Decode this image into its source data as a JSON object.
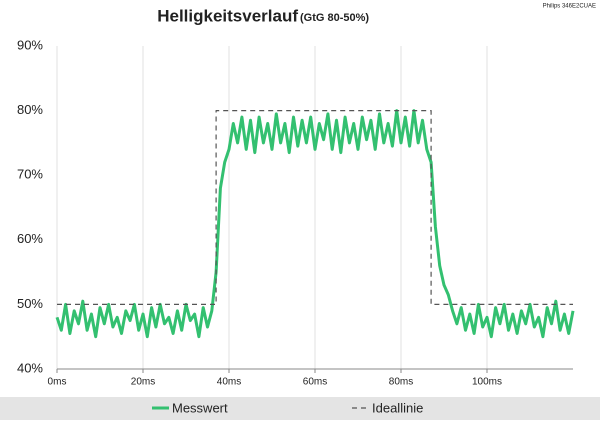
{
  "chart_data": {
    "type": "line",
    "title": "Helligkeitsverlauf",
    "subtitle": "(GtG 80-50%)",
    "source": "Philips 346E2CUAE",
    "xlim": [
      0,
      120
    ],
    "ylim": [
      40,
      90
    ],
    "xticks": [
      {
        "value": 0,
        "label": "0ms"
      },
      {
        "value": 20,
        "label": "20ms"
      },
      {
        "value": 40,
        "label": "40ms"
      },
      {
        "value": 60,
        "label": "60ms"
      },
      {
        "value": 80,
        "label": "80ms"
      },
      {
        "value": 100,
        "label": "100ms"
      }
    ],
    "yticks": [
      {
        "value": 40,
        "label": "40%"
      },
      {
        "value": 50,
        "label": "50%"
      },
      {
        "value": 60,
        "label": "60%"
      },
      {
        "value": 70,
        "label": "70%"
      },
      {
        "value": 80,
        "label": "80%"
      },
      {
        "value": 90,
        "label": "90%"
      }
    ],
    "grid": true,
    "legend": "bottom",
    "series": [
      {
        "name": "Messwert",
        "color": "#33c070",
        "dashed": false,
        "x": [
          0,
          1,
          2,
          3,
          4,
          5,
          6,
          7,
          8,
          9,
          10,
          11,
          12,
          13,
          14,
          15,
          16,
          17,
          18,
          19,
          20,
          21,
          22,
          23,
          24,
          25,
          26,
          27,
          28,
          29,
          30,
          31,
          32,
          33,
          34,
          35,
          36,
          37,
          38,
          39,
          40,
          41,
          42,
          43,
          44,
          45,
          46,
          47,
          48,
          49,
          50,
          51,
          52,
          53,
          54,
          55,
          56,
          57,
          58,
          59,
          60,
          61,
          62,
          63,
          64,
          65,
          66,
          67,
          68,
          69,
          70,
          71,
          72,
          73,
          74,
          75,
          76,
          77,
          78,
          79,
          80,
          81,
          82,
          83,
          84,
          85,
          86,
          87,
          88,
          89,
          90,
          91,
          92,
          93,
          94,
          95,
          96,
          97,
          98,
          99,
          100,
          101,
          102,
          103,
          104,
          105,
          106,
          107,
          108,
          109,
          110,
          111,
          112,
          113,
          114,
          115,
          116,
          117,
          118,
          119,
          120
        ],
        "values": [
          48,
          46,
          50,
          45.5,
          49,
          47,
          50.5,
          46,
          48.5,
          45,
          49.5,
          47,
          50,
          46.5,
          48,
          45.5,
          49,
          47.5,
          50,
          46,
          48.5,
          45,
          49.5,
          46.5,
          50,
          47,
          48,
          45.5,
          49,
          46,
          50,
          47.5,
          48.5,
          45,
          49.5,
          46.5,
          49,
          55,
          68,
          72,
          74,
          78,
          75,
          79,
          74,
          78.5,
          73.5,
          79,
          75,
          78,
          74,
          79.5,
          75,
          78,
          73.5,
          79,
          74.5,
          78.5,
          75,
          79,
          74,
          78,
          75.5,
          79.5,
          74,
          78.5,
          73.5,
          79,
          75,
          78,
          74,
          79,
          75.5,
          78.5,
          74,
          79.5,
          75,
          78,
          74.5,
          80,
          75,
          79,
          74.5,
          80,
          75,
          78.5,
          74,
          72,
          62,
          56,
          53,
          51.5,
          49,
          47,
          49.5,
          46,
          48.5,
          45.5,
          50,
          46.5,
          48,
          45,
          49.5,
          47,
          50,
          46,
          48.5,
          45.5,
          49,
          47,
          50,
          46.5,
          48,
          45,
          49.5,
          47,
          50.5,
          46,
          48.5,
          45.5,
          49
        ]
      },
      {
        "name": "Ideallinie",
        "color": "#555555",
        "dashed": true,
        "x": [
          0,
          37,
          37,
          87,
          87,
          120
        ],
        "values": [
          50,
          50,
          80,
          80,
          50,
          50
        ]
      }
    ]
  }
}
